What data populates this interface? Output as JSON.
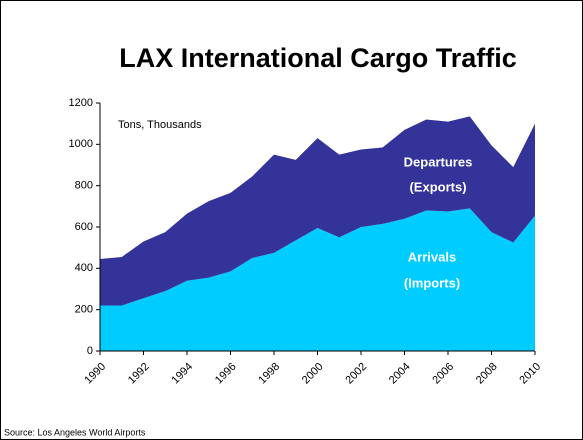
{
  "chart_data": {
    "type": "stacked_area",
    "title": "LAX International Cargo Traffic",
    "x": [
      1990,
      1991,
      1992,
      1993,
      1994,
      1995,
      1996,
      1997,
      1998,
      1999,
      2000,
      2001,
      2002,
      2003,
      2004,
      2005,
      2006,
      2007,
      2008,
      2009,
      2010
    ],
    "xlim": [
      1990,
      2010
    ],
    "xticks": [
      1990,
      1992,
      1994,
      1996,
      1998,
      2000,
      2002,
      2004,
      2006,
      2008,
      2010
    ],
    "ylim": [
      0,
      1200
    ],
    "yticks": [
      0,
      200,
      400,
      600,
      800,
      1000,
      1200
    ],
    "series": [
      {
        "name": "Arrivals",
        "color": "#00ccff",
        "values": [
          220,
          220,
          255,
          290,
          340,
          355,
          385,
          450,
          475,
          535,
          595,
          550,
          600,
          615,
          640,
          680,
          675,
          690,
          575,
          525,
          655
        ]
      },
      {
        "name": "Departures",
        "color": "#333399",
        "values": [
          225,
          235,
          275,
          285,
          325,
          370,
          380,
          395,
          475,
          390,
          435,
          400,
          375,
          370,
          430,
          440,
          435,
          445,
          420,
          365,
          445
        ]
      }
    ],
    "annotations": [
      "Tons, Thousands",
      "(Imports)",
      "(Exports)"
    ],
    "source": "Source:  Los Angeles World Airports"
  }
}
